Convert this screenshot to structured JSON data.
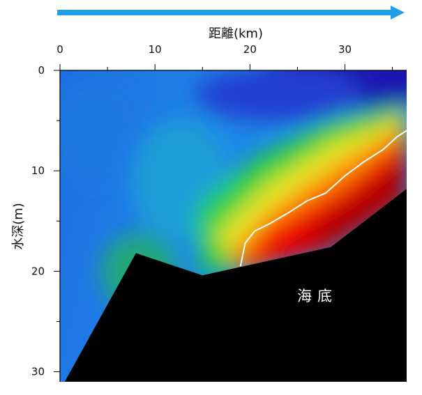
{
  "chart_data": {
    "type": "heatmap",
    "title": "",
    "xlabel": "距離(km)",
    "ylabel": "水深(m)",
    "x_axis_position": "top",
    "xlim": [
      0,
      36.5
    ],
    "ylim": [
      0,
      31
    ],
    "y_inverted": true,
    "x_ticks": [
      0,
      10,
      20,
      30
    ],
    "x_tick_labels": [
      "0",
      "10",
      "20",
      "30"
    ],
    "y_ticks": [
      0,
      10,
      20,
      30
    ],
    "y_tick_labels": [
      "0",
      "10",
      "20",
      "30"
    ],
    "colormap": [
      "#1a10a8",
      "#1f5fe0",
      "#1e8fe6",
      "#1fd04a",
      "#e8e820",
      "#ff7a00",
      "#f00000",
      "#a80000"
    ],
    "seabed": {
      "label": "海底",
      "x": [
        0.5,
        8,
        15,
        28.5,
        36.5,
        36.5,
        0.5
      ],
      "depth": [
        31,
        18.2,
        20.4,
        17.6,
        11.8,
        31,
        31
      ]
    },
    "isoline": {
      "color": "#ffffff",
      "x": [
        19,
        19.5,
        20.5,
        22,
        24,
        26,
        28,
        30,
        32,
        34,
        35.5,
        36.5
      ],
      "depth": [
        19.5,
        17.2,
        16,
        15.3,
        14.2,
        13.0,
        12.2,
        10.5,
        9.1,
        7.9,
        6.6,
        6.0
      ]
    },
    "arrow": {
      "color": "#1f9ee6",
      "direction": "right"
    },
    "grid": false,
    "legend": "none"
  }
}
